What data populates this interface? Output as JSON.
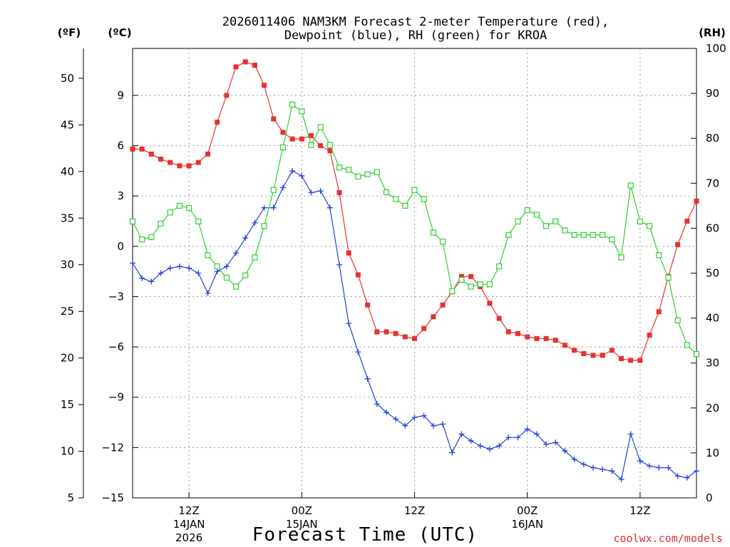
{
  "page": {
    "title_line1": "2026011406 NAM3KM Forecast 2-meter Temperature (red),",
    "title_line2": "Dewpoint (blue), RH (green) for KROA",
    "credit": "coolwx.com/models"
  },
  "chart_data": {
    "type": "line",
    "title": "2026011406 NAM3KM Forecast 2-meter Temperature (red), Dewpoint (blue), RH (green) for KROA",
    "xlabel": "Forecast Time (UTC)",
    "x_units": "forecast hour",
    "xlim": [
      0,
      60
    ],
    "x_ticks": [
      {
        "x": 6,
        "label": "12Z",
        "sub": [
          "14JAN",
          "2026"
        ]
      },
      {
        "x": 18,
        "label": "00Z",
        "sub": [
          "15JAN"
        ]
      },
      {
        "x": 30,
        "label": "12Z",
        "sub": []
      },
      {
        "x": 42,
        "label": "00Z",
        "sub": [
          "16JAN"
        ]
      },
      {
        "x": 54,
        "label": "12Z",
        "sub": []
      }
    ],
    "y_left_f": {
      "unit_label": "(ºF)",
      "lim": [
        5,
        53.2
      ],
      "ticks": [
        5,
        10,
        15,
        20,
        25,
        30,
        35,
        40,
        45,
        50
      ]
    },
    "y_left_c": {
      "unit_label": "(ºC)",
      "lim": [
        -15,
        11.8
      ],
      "ticks": [
        -15,
        -12,
        -9,
        -6,
        -3,
        0,
        3,
        6,
        9
      ]
    },
    "y_right": {
      "unit_label": "(RH)",
      "lim": [
        0,
        100
      ],
      "ticks": [
        0,
        10,
        20,
        30,
        40,
        50,
        60,
        70,
        80,
        90,
        100
      ]
    },
    "x": [
      0,
      1,
      2,
      3,
      4,
      5,
      6,
      7,
      8,
      9,
      10,
      11,
      12,
      13,
      14,
      15,
      16,
      17,
      18,
      19,
      20,
      21,
      22,
      23,
      24,
      25,
      26,
      27,
      28,
      29,
      30,
      31,
      32,
      33,
      34,
      35,
      36,
      37,
      38,
      39,
      40,
      41,
      42,
      43,
      44,
      45,
      46,
      47,
      48,
      49,
      50,
      51,
      52,
      53,
      54,
      55,
      56,
      57,
      58,
      59,
      60
    ],
    "series": [
      {
        "name": "2-meter Temperature",
        "units": "degC",
        "axis": "celsius",
        "color": "#e83030",
        "marker": "filled-square",
        "values": [
          5.8,
          5.8,
          5.5,
          5.2,
          5.0,
          4.8,
          4.8,
          5.0,
          5.5,
          7.4,
          9.0,
          10.7,
          11.0,
          10.8,
          9.6,
          7.6,
          6.8,
          6.4,
          6.4,
          6.6,
          6.0,
          5.7,
          3.2,
          -0.4,
          -1.7,
          -3.5,
          -5.1,
          -5.1,
          -5.2,
          -5.4,
          -5.5,
          -4.9,
          -4.2,
          -3.5,
          -2.7,
          -1.8,
          -1.8,
          -2.4,
          -3.4,
          -4.3,
          -5.1,
          -5.2,
          -5.4,
          -5.5,
          -5.5,
          -5.6,
          -5.9,
          -6.2,
          -6.4,
          -6.5,
          -6.5,
          -6.2,
          -6.7,
          -6.8,
          -6.8,
          -5.3,
          -3.9,
          -1.8,
          0.1,
          1.5,
          2.7
        ]
      },
      {
        "name": "Dewpoint",
        "units": "degC",
        "axis": "celsius",
        "color": "#2040e0",
        "marker": "plus",
        "values": [
          -1.0,
          -1.9,
          -2.1,
          -1.6,
          -1.3,
          -1.2,
          -1.3,
          -1.6,
          -2.8,
          -1.5,
          -1.2,
          -0.4,
          0.5,
          1.4,
          2.3,
          2.3,
          3.5,
          4.5,
          4.2,
          3.2,
          3.3,
          2.3,
          -1.1,
          -4.6,
          -6.3,
          -7.9,
          -9.4,
          -9.9,
          -10.3,
          -10.7,
          -10.2,
          -10.1,
          -10.7,
          -10.6,
          -12.3,
          -11.2,
          -11.6,
          -11.9,
          -12.1,
          -11.9,
          -11.4,
          -11.4,
          -10.9,
          -11.2,
          -11.8,
          -11.7,
          -12.2,
          -12.7,
          -13.0,
          -13.2,
          -13.3,
          -13.4,
          -13.9,
          -11.2,
          -12.8,
          -13.1,
          -13.2,
          -13.2,
          -13.7,
          -13.8,
          -13.4
        ]
      },
      {
        "name": "Relative Humidity",
        "units": "%",
        "axis": "rh",
        "color": "#30d030",
        "marker": "open-square",
        "values": [
          61.5,
          57.5,
          58,
          61,
          63.5,
          65,
          64.5,
          61.5,
          54,
          51.5,
          49,
          47,
          49.5,
          53.5,
          60.5,
          68.5,
          78,
          87.5,
          86,
          78.5,
          82.5,
          78.5,
          73.5,
          73,
          71.5,
          72,
          72.5,
          68,
          66.5,
          65,
          68.5,
          66.5,
          59,
          57,
          46,
          48.5,
          47,
          47.5,
          47.5,
          51.5,
          58.5,
          61.5,
          64,
          63,
          60.5,
          61.5,
          59.5,
          58.5,
          58.5,
          58.5,
          58.5,
          57.5,
          53.5,
          69.5,
          61.5,
          60.5,
          54,
          49,
          39.5,
          34,
          32
        ]
      }
    ]
  }
}
